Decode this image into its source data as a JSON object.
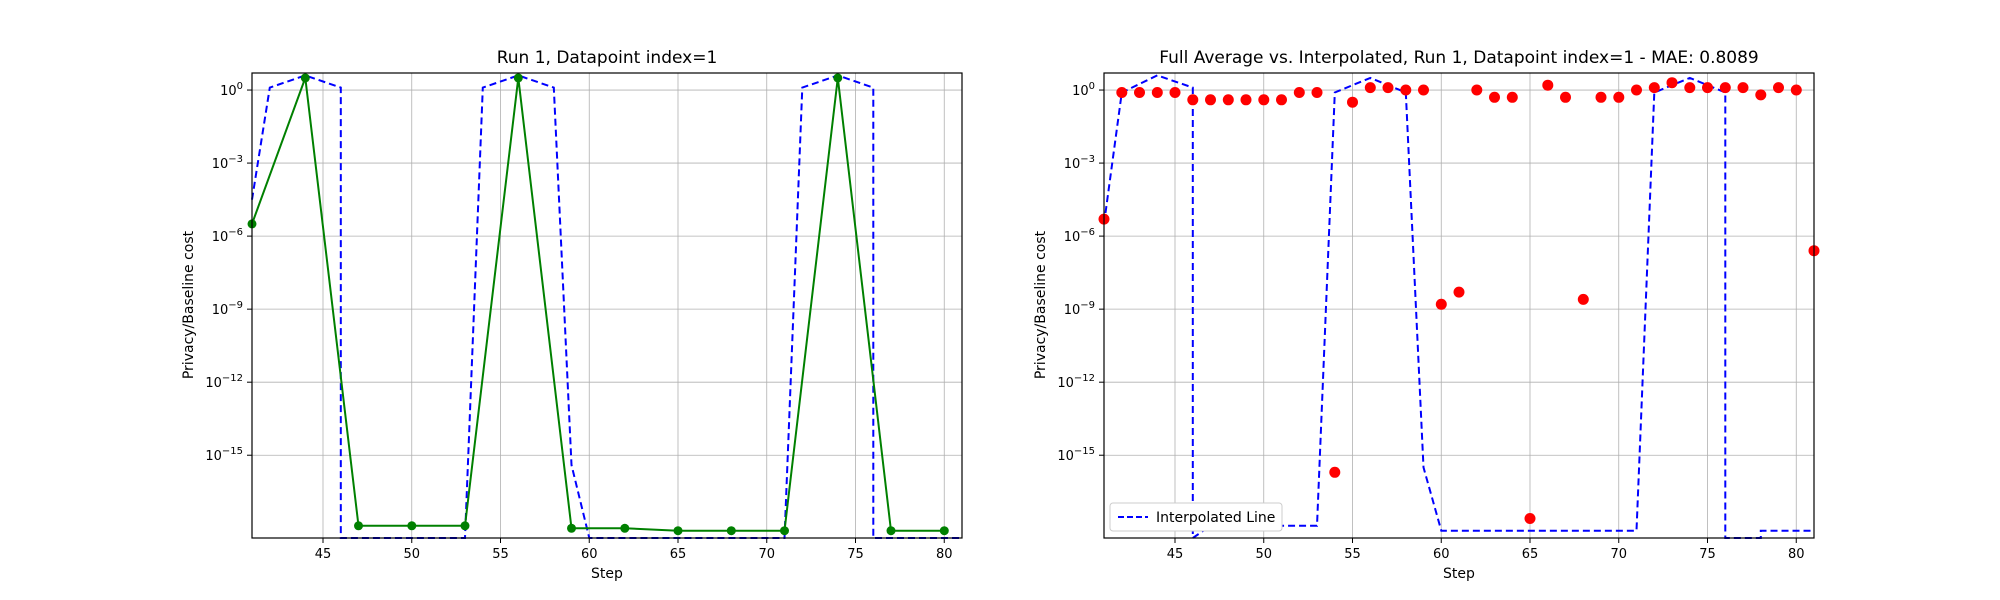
{
  "chart_data": [
    {
      "type": "line",
      "title": "Run 1, Datapoint index=1",
      "xlabel": "Step",
      "ylabel": "Privacy/Baseline cost",
      "xlim": [
        41,
        81
      ],
      "ylog_exp_range": [
        -18.4,
        0.7
      ],
      "xticks": [
        45,
        50,
        55,
        60,
        65,
        70,
        75,
        80
      ],
      "yticks": [
        {
          "exp": 0,
          "label": "10^0"
        },
        {
          "exp": -3,
          "label": "10^-3"
        },
        {
          "exp": -6,
          "label": "10^-6"
        },
        {
          "exp": -9,
          "label": "10^-9"
        },
        {
          "exp": -12,
          "label": "10^-12"
        },
        {
          "exp": -15,
          "label": "10^-15"
        }
      ],
      "grid": true,
      "series": [
        {
          "style": "dashed",
          "color": "#0000ff",
          "x": [
            41,
            42,
            44,
            46,
            46,
            47,
            53,
            53,
            54,
            56,
            58,
            59,
            60,
            71,
            71,
            72,
            74,
            76,
            76,
            77,
            81
          ],
          "y_exp": [
            -4.5,
            0.1,
            0.6,
            0.1,
            -18.4,
            -18.4,
            -18.4,
            -18.4,
            0.1,
            0.6,
            0.1,
            -15.4,
            -18.4,
            -18.4,
            -18.4,
            0.1,
            0.6,
            0.1,
            -18.4,
            -18.4,
            -18.4
          ]
        },
        {
          "style": "solid-markers",
          "color": "#008000",
          "x": [
            41,
            44,
            47,
            50,
            53,
            56,
            59,
            62,
            65,
            68,
            71,
            74,
            77,
            80
          ],
          "y_exp": [
            -5.5,
            0.5,
            -17.9,
            -17.9,
            -17.9,
            0.5,
            -18.0,
            -18.0,
            -18.1,
            -18.1,
            -18.1,
            0.5,
            -18.1,
            -18.1
          ]
        }
      ]
    },
    {
      "type": "scatter",
      "title": "Full Average vs. Interpolated, Run 1, Datapoint index=1 - MAE: 0.8089",
      "xlabel": "Step",
      "ylabel": "Privacy/Baseline cost",
      "xlim": [
        41,
        81
      ],
      "ylog_exp_range": [
        -18.4,
        0.7
      ],
      "xticks": [
        45,
        50,
        55,
        60,
        65,
        70,
        75,
        80
      ],
      "yticks": [
        {
          "exp": 0,
          "label": "10^0"
        },
        {
          "exp": -3,
          "label": "10^-3"
        },
        {
          "exp": -6,
          "label": "10^-6"
        },
        {
          "exp": -9,
          "label": "10^-9"
        },
        {
          "exp": -12,
          "label": "10^-12"
        },
        {
          "exp": -15,
          "label": "10^-15"
        }
      ],
      "grid": true,
      "legend": {
        "label": "Interpolated Line",
        "placement": "lower-left"
      },
      "series": [
        {
          "name": "Interpolated Line",
          "style": "dashed",
          "color": "#0000ff",
          "x": [
            41,
            42,
            44,
            46,
            46,
            47,
            53,
            53,
            54,
            56,
            58,
            59,
            60,
            71,
            71,
            72,
            74,
            76,
            76,
            78,
            78,
            81
          ],
          "y_exp": [
            -5.5,
            -0.1,
            0.6,
            0.1,
            -18.4,
            -17.9,
            -17.9,
            -17.9,
            -0.1,
            0.5,
            -0.1,
            -15.5,
            -18.1,
            -18.1,
            -18.1,
            -0.1,
            0.5,
            -0.1,
            -18.4,
            -18.4,
            -18.1,
            -18.1
          ]
        },
        {
          "style": "markers",
          "color": "#ff0000",
          "x": [
            41,
            42,
            43,
            44,
            45,
            46,
            47,
            48,
            49,
            50,
            51,
            52,
            53,
            54,
            55,
            56,
            57,
            58,
            59,
            60,
            61,
            62,
            63,
            64,
            65,
            66,
            67,
            68,
            69,
            70,
            71,
            72,
            73,
            74,
            75,
            76,
            77,
            78,
            79,
            80,
            81
          ],
          "y_exp": [
            -5.3,
            -0.1,
            -0.1,
            -0.1,
            -0.1,
            -0.4,
            -0.4,
            -0.4,
            -0.4,
            -0.4,
            -0.4,
            -0.1,
            -0.1,
            -15.7,
            -0.5,
            0.1,
            0.1,
            0.0,
            0.0,
            -8.8,
            -8.3,
            0.0,
            -0.3,
            -0.3,
            -17.6,
            0.2,
            -0.3,
            -8.6,
            -0.3,
            -0.3,
            0.0,
            0.1,
            0.3,
            0.1,
            0.1,
            0.1,
            0.1,
            -0.2,
            0.1,
            0.0,
            -6.6
          ]
        }
      ]
    }
  ]
}
